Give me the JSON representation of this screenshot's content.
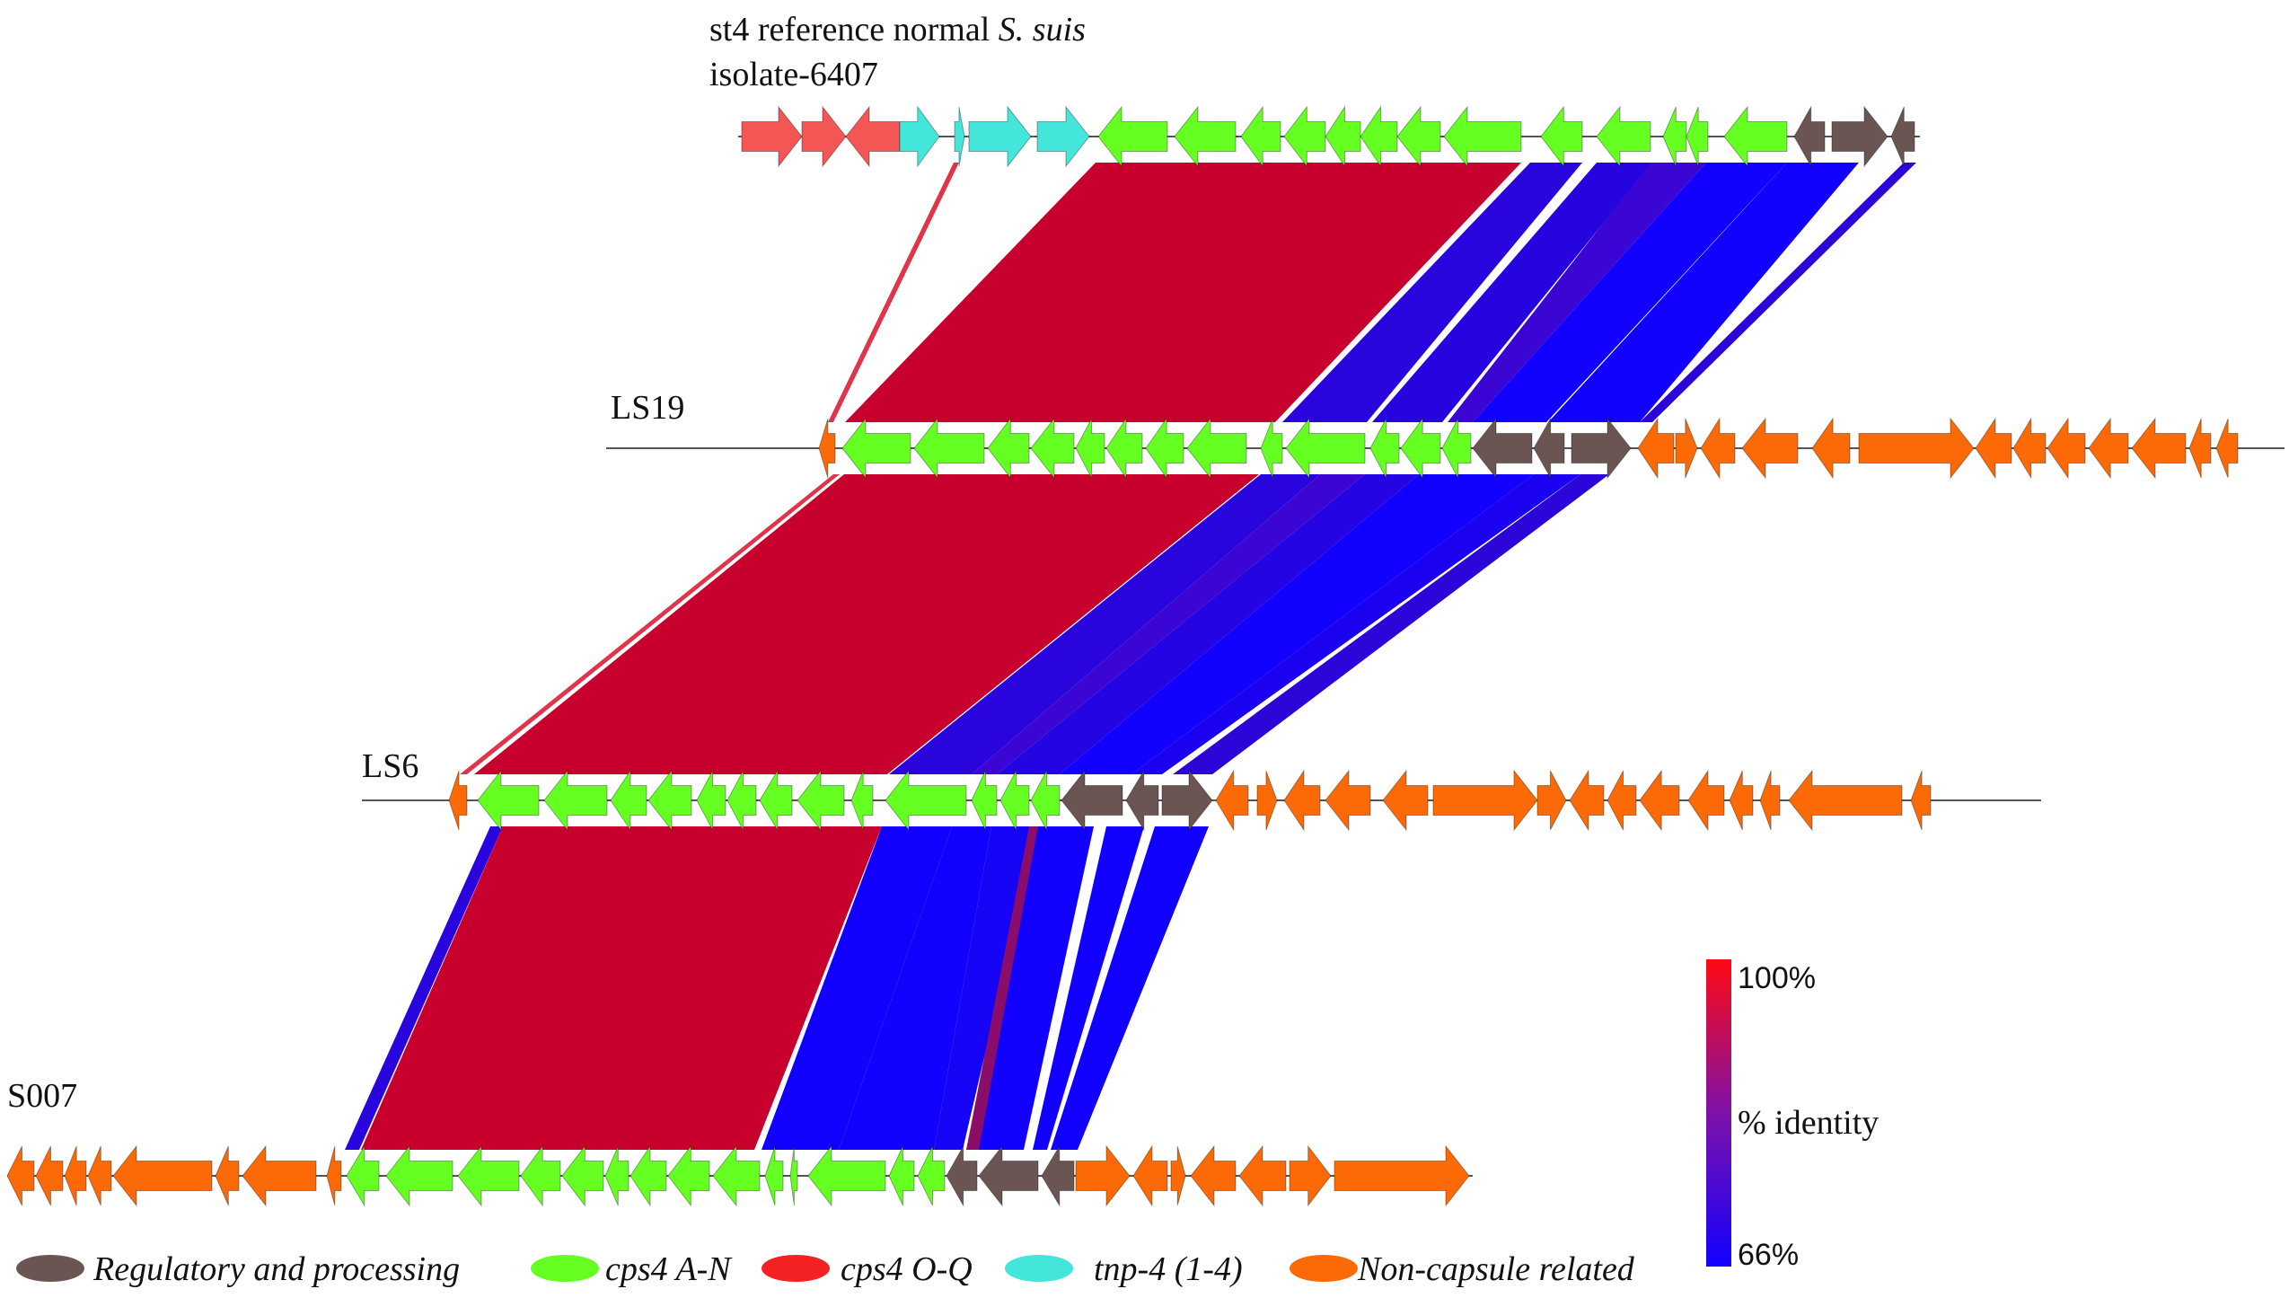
{
  "colors": {
    "regulatory": "#6b5553",
    "cps_an": "#66ff22",
    "cps_oq": "#f45555",
    "tnp": "#44e6dc",
    "noncapsule": "#fb6a06",
    "identity_high": "#c8002e",
    "identity_low": "#1200ff"
  },
  "tracks": [
    {
      "id": "ref",
      "label_line1": "st4 reference normal ",
      "label_line1_italic": "S. suis",
      "label_line2": "isolate-6407"
    },
    {
      "id": "ls19",
      "label": "LS19"
    },
    {
      "id": "ls6",
      "label": "LS6"
    },
    {
      "id": "s007",
      "label": "S007"
    }
  ],
  "scale": {
    "top_label": "100%",
    "mid_label": "% identity",
    "bottom_label": "66%",
    "max": 100,
    "min": 66
  },
  "legend": [
    {
      "key": "regulatory",
      "label": "Regulatory and processing"
    },
    {
      "key": "cps_an",
      "label": "cps4 A-N"
    },
    {
      "key": "cps_oq",
      "label": "cps4 O-Q"
    },
    {
      "key": "tnp",
      "label": "tnp-4 (1-4)"
    },
    {
      "key": "noncapsule",
      "label": "Non-capsule related"
    }
  ]
}
